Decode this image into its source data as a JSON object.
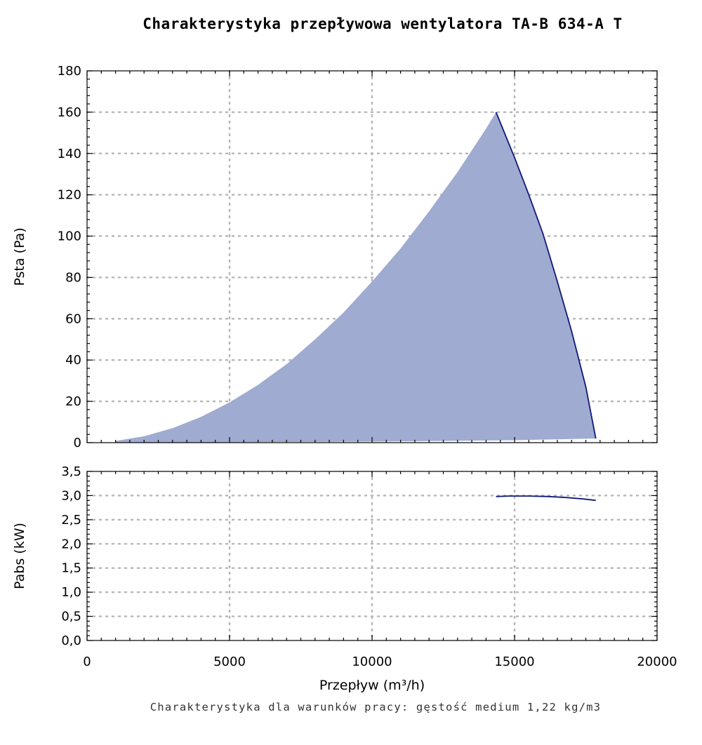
{
  "title": "Charakterystyka przepływowa wentylatora TA-B 634-A T",
  "footnote": "Charakterystyka dla warunków pracy: gęstość medium 1,22 kg/m3",
  "colors": {
    "area_fill": "#9fabd0",
    "curve": "#10187a",
    "axis": "#000000",
    "grid": "#b8b8b8"
  },
  "chart_data": [
    {
      "type": "area",
      "xlabel": "Przepływ (m³/h)",
      "ylabel": "Psta (Pa)",
      "xlim": [
        0,
        20000
      ],
      "ylim": [
        0,
        180
      ],
      "grid": true,
      "x_ticks": [
        0,
        5000,
        10000,
        15000,
        20000
      ],
      "y_ticks": [
        0,
        20,
        40,
        60,
        80,
        100,
        120,
        140,
        160,
        180
      ],
      "y_tick_labels": [
        "0",
        "20",
        "40",
        "60",
        "80",
        "100",
        "120",
        "140",
        "160",
        "180"
      ],
      "series": [
        {
          "upper_left_boundary": [
            [
              1000,
              0.8
            ],
            [
              2000,
              3.1
            ],
            [
              3000,
              7.0
            ],
            [
              4000,
              12.5
            ],
            [
              5000,
              19.5
            ],
            [
              6000,
              28.0
            ],
            [
              7000,
              38.0
            ],
            [
              8000,
              50.0
            ],
            [
              9000,
              63.0
            ],
            [
              10000,
              78.0
            ],
            [
              11000,
              94.0
            ],
            [
              12000,
              112.0
            ],
            [
              13000,
              131.0
            ],
            [
              14000,
              152.0
            ],
            [
              14350,
              160.0
            ]
          ],
          "upper_right_curve": [
            [
              14350,
              160.0
            ],
            [
              15000,
              138.0
            ],
            [
              15500,
              120.0
            ],
            [
              16000,
              101.0
            ],
            [
              16500,
              78.0
            ],
            [
              17000,
              54.0
            ],
            [
              17500,
              27.0
            ],
            [
              17850,
              2.0
            ]
          ],
          "lower_boundary": [
            [
              17850,
              2.0
            ],
            [
              15000,
              1.2
            ],
            [
              10000,
              0.5
            ],
            [
              5000,
              0.2
            ],
            [
              1000,
              0.0
            ]
          ]
        }
      ]
    },
    {
      "type": "line",
      "xlabel": "Przepływ (m³/h)",
      "ylabel": "Pabs (kW)",
      "xlim": [
        0,
        20000
      ],
      "ylim": [
        0,
        3.5
      ],
      "grid": true,
      "x_ticks": [
        0,
        5000,
        10000,
        15000,
        20000
      ],
      "x_tick_labels": [
        "0",
        "5000",
        "10000",
        "15000",
        "20000"
      ],
      "y_ticks": [
        0,
        0.5,
        1.0,
        1.5,
        2.0,
        2.5,
        3.0,
        3.5
      ],
      "y_tick_labels": [
        "0,0",
        "0,5",
        "1,0",
        "1,5",
        "2,0",
        "2,5",
        "3,0",
        "3,5"
      ],
      "series": [
        {
          "x": [
            14350,
            14800,
            15500,
            16200,
            16800,
            17400,
            17850
          ],
          "y": [
            2.98,
            2.99,
            2.99,
            2.98,
            2.96,
            2.93,
            2.9
          ]
        }
      ]
    }
  ]
}
